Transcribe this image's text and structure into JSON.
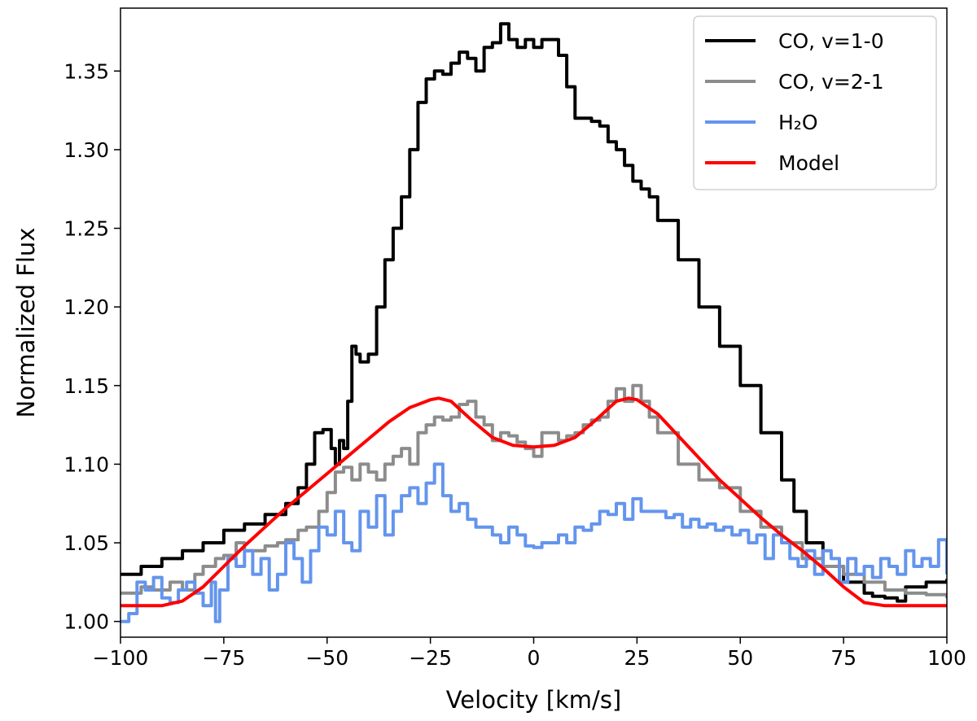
{
  "chart_data": {
    "type": "line",
    "xlabel": "Velocity [km/s]",
    "ylabel": "Normalized Flux",
    "xlim": [
      -100,
      100
    ],
    "ylim": [
      0.99,
      1.39
    ],
    "xticks": [
      -100,
      -75,
      -50,
      -25,
      0,
      25,
      50,
      75,
      100
    ],
    "xtick_labels": [
      "−100",
      "−75",
      "−50",
      "−25",
      "0",
      "25",
      "50",
      "75",
      "100"
    ],
    "yticks": [
      1.0,
      1.05,
      1.1,
      1.15,
      1.2,
      1.25,
      1.3,
      1.35
    ],
    "ytick_labels": [
      "1.00",
      "1.05",
      "1.10",
      "1.15",
      "1.20",
      "1.25",
      "1.30",
      "1.35"
    ],
    "grid": false,
    "legend_position": "top-right",
    "series": [
      {
        "name": "CO, v=1-0",
        "color": "#000000",
        "x": [
          -100,
          -95,
          -90,
          -85,
          -80,
          -75,
          -70,
          -65,
          -60,
          -57,
          -55,
          -53,
          -51,
          -49,
          -48,
          -47,
          -46,
          -45,
          -44,
          -43,
          -42,
          -40,
          -38,
          -36,
          -34,
          -32,
          -30,
          -28,
          -26,
          -24,
          -22,
          -20,
          -18,
          -16,
          -14,
          -12,
          -10,
          -8,
          -6,
          -4,
          -2,
          0,
          2,
          4,
          6,
          8,
          10,
          12,
          14,
          16,
          18,
          20,
          22,
          24,
          26,
          28,
          30,
          35,
          40,
          45,
          50,
          55,
          60,
          63,
          66,
          70,
          75,
          80,
          82,
          85,
          88,
          90,
          95,
          100
        ],
        "y": [
          1.03,
          1.035,
          1.04,
          1.045,
          1.05,
          1.058,
          1.062,
          1.068,
          1.075,
          1.085,
          1.1,
          1.12,
          1.122,
          1.11,
          1.1,
          1.115,
          1.11,
          1.14,
          1.175,
          1.17,
          1.165,
          1.17,
          1.2,
          1.23,
          1.25,
          1.27,
          1.3,
          1.33,
          1.345,
          1.35,
          1.348,
          1.355,
          1.362,
          1.358,
          1.35,
          1.365,
          1.368,
          1.38,
          1.37,
          1.365,
          1.37,
          1.365,
          1.37,
          1.37,
          1.36,
          1.34,
          1.32,
          1.32,
          1.318,
          1.315,
          1.305,
          1.3,
          1.29,
          1.28,
          1.275,
          1.27,
          1.255,
          1.23,
          1.2,
          1.175,
          1.15,
          1.12,
          1.09,
          1.07,
          1.05,
          1.035,
          1.025,
          1.018,
          1.016,
          1.015,
          1.013,
          1.022,
          1.025,
          1.027
        ]
      },
      {
        "name": "CO, v=2-1",
        "color": "#8c8c8c",
        "x": [
          -100,
          -95,
          -92,
          -88,
          -85,
          -82,
          -80,
          -77,
          -75,
          -72,
          -70,
          -67,
          -65,
          -62,
          -60,
          -57,
          -55,
          -52,
          -50,
          -48,
          -46,
          -44,
          -42,
          -40,
          -38,
          -36,
          -34,
          -32,
          -30,
          -28,
          -26,
          -24,
          -22,
          -20,
          -18,
          -16,
          -14,
          -12,
          -10,
          -8,
          -6,
          -4,
          -2,
          0,
          2,
          4,
          6,
          8,
          10,
          12,
          14,
          16,
          18,
          20,
          22,
          24,
          26,
          28,
          30,
          35,
          40,
          45,
          50,
          55,
          60,
          65,
          70,
          75,
          80,
          85,
          90,
          95,
          100
        ],
        "y": [
          1.018,
          1.022,
          1.02,
          1.025,
          1.02,
          1.03,
          1.035,
          1.04,
          1.042,
          1.05,
          1.045,
          1.045,
          1.048,
          1.05,
          1.052,
          1.058,
          1.06,
          1.07,
          1.082,
          1.095,
          1.098,
          1.09,
          1.1,
          1.095,
          1.09,
          1.1,
          1.105,
          1.11,
          1.1,
          1.12,
          1.125,
          1.13,
          1.128,
          1.13,
          1.138,
          1.14,
          1.13,
          1.125,
          1.115,
          1.12,
          1.118,
          1.114,
          1.11,
          1.105,
          1.12,
          1.12,
          1.115,
          1.118,
          1.12,
          1.125,
          1.128,
          1.13,
          1.14,
          1.148,
          1.14,
          1.15,
          1.14,
          1.13,
          1.12,
          1.1,
          1.09,
          1.085,
          1.07,
          1.06,
          1.05,
          1.04,
          1.035,
          1.03,
          1.025,
          1.02,
          1.018,
          1.017,
          1.015
        ]
      },
      {
        "name": "H₂O",
        "color": "#6495ed",
        "x": [
          -100,
          -98,
          -96,
          -94,
          -92,
          -90,
          -88,
          -86,
          -84,
          -82,
          -80,
          -78,
          -77,
          -76,
          -74,
          -72,
          -70,
          -68,
          -66,
          -64,
          -62,
          -60,
          -58,
          -56,
          -54,
          -52,
          -50,
          -48,
          -46,
          -44,
          -42,
          -40,
          -38,
          -36,
          -34,
          -32,
          -30,
          -28,
          -26,
          -24,
          -22,
          -20,
          -18,
          -16,
          -14,
          -12,
          -10,
          -8,
          -6,
          -4,
          -2,
          0,
          2,
          4,
          6,
          8,
          10,
          12,
          14,
          16,
          18,
          20,
          22,
          24,
          26,
          28,
          30,
          32,
          34,
          36,
          38,
          40,
          42,
          44,
          46,
          48,
          50,
          52,
          54,
          56,
          58,
          60,
          62,
          64,
          66,
          68,
          70,
          72,
          74,
          76,
          78,
          80,
          82,
          84,
          86,
          88,
          90,
          92,
          94,
          96,
          98,
          100
        ],
        "y": [
          1.0,
          1.005,
          1.025,
          1.02,
          1.028,
          1.015,
          1.012,
          1.02,
          1.025,
          1.018,
          1.01,
          1.025,
          1.0,
          1.02,
          1.04,
          1.035,
          1.045,
          1.03,
          1.04,
          1.02,
          1.03,
          1.05,
          1.04,
          1.025,
          1.045,
          1.06,
          1.055,
          1.07,
          1.05,
          1.045,
          1.07,
          1.06,
          1.08,
          1.055,
          1.07,
          1.08,
          1.085,
          1.075,
          1.088,
          1.1,
          1.08,
          1.07,
          1.075,
          1.065,
          1.06,
          1.06,
          1.055,
          1.05,
          1.06,
          1.055,
          1.048,
          1.047,
          1.05,
          1.05,
          1.055,
          1.05,
          1.06,
          1.058,
          1.062,
          1.07,
          1.068,
          1.075,
          1.065,
          1.078,
          1.07,
          1.07,
          1.07,
          1.066,
          1.068,
          1.06,
          1.065,
          1.06,
          1.062,
          1.058,
          1.06,
          1.055,
          1.058,
          1.05,
          1.055,
          1.04,
          1.055,
          1.05,
          1.04,
          1.035,
          1.045,
          1.03,
          1.045,
          1.04,
          1.025,
          1.04,
          1.03,
          1.035,
          1.028,
          1.04,
          1.035,
          1.03,
          1.045,
          1.035,
          1.04,
          1.035,
          1.052,
          1.03
        ]
      },
      {
        "name": "Model",
        "color": "#ff0000",
        "x": [
          -100,
          -95,
          -90,
          -85,
          -80,
          -75,
          -70,
          -65,
          -60,
          -55,
          -50,
          -45,
          -40,
          -35,
          -30,
          -25,
          -23,
          -20,
          -15,
          -10,
          -5,
          0,
          5,
          10,
          15,
          20,
          23,
          25,
          30,
          35,
          40,
          45,
          50,
          55,
          60,
          65,
          70,
          75,
          80,
          85,
          90,
          95,
          100
        ],
        "y": [
          1.01,
          1.01,
          1.01,
          1.013,
          1.022,
          1.035,
          1.048,
          1.06,
          1.072,
          1.083,
          1.094,
          1.105,
          1.116,
          1.127,
          1.136,
          1.141,
          1.142,
          1.14,
          1.128,
          1.117,
          1.112,
          1.111,
          1.112,
          1.117,
          1.128,
          1.14,
          1.142,
          1.141,
          1.132,
          1.118,
          1.104,
          1.09,
          1.078,
          1.066,
          1.055,
          1.045,
          1.034,
          1.022,
          1.012,
          1.01,
          1.01,
          1.01,
          1.01
        ]
      }
    ]
  }
}
